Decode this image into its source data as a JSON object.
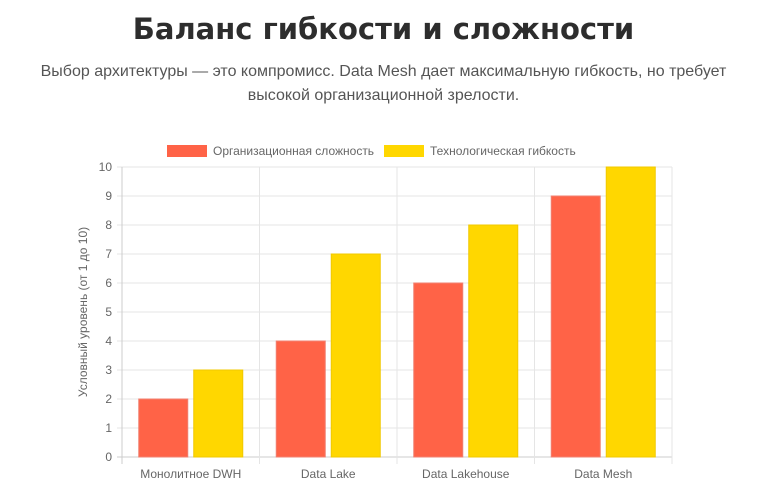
{
  "title": "Баланс гибкости и сложности",
  "subtitle": "Выбор архитектуры — это компромисс. Data Mesh дает максимальную гибкость, но требует высокой организационной зрелости.",
  "chart_data": {
    "type": "bar",
    "categories": [
      "Монолитное DWH",
      "Data Lake",
      "Data Lakehouse",
      "Data Mesh"
    ],
    "series": [
      {
        "name": "Организационная сложность",
        "values": [
          2,
          4,
          6,
          9
        ],
        "color": "#FF6347"
      },
      {
        "name": "Технологическая гибкость",
        "values": [
          3,
          7,
          8,
          10
        ],
        "color": "#FFD700"
      }
    ],
    "ylabel": "Условный уровень (от 1 до 10)",
    "ylim": [
      0,
      10
    ],
    "yticks": [
      0,
      1,
      2,
      3,
      4,
      5,
      6,
      7,
      8,
      9,
      10
    ],
    "grid": true,
    "legend": "top"
  }
}
